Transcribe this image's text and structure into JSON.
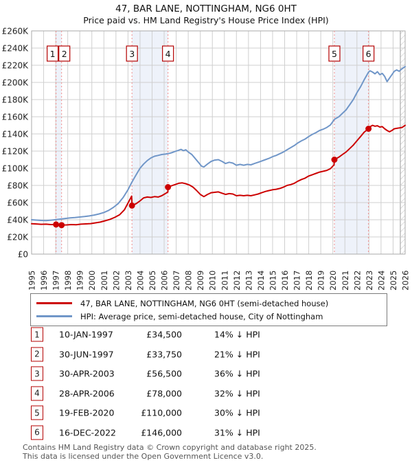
{
  "title": "47, BAR LANE, NOTTINGHAM, NG6 0HT",
  "subtitle": "Price paid vs. HM Land Registry's House Price Index (HPI)",
  "chart_data": {
    "type": "line",
    "x_range": [
      1995,
      2026
    ],
    "y_range": [
      0,
      260000
    ],
    "y_tick_step": 20000,
    "y_tick_labels": [
      "£0",
      "£20K",
      "£40K",
      "£60K",
      "£80K",
      "£100K",
      "£120K",
      "£140K",
      "£160K",
      "£180K",
      "£200K",
      "£220K",
      "£240K",
      "£260K"
    ],
    "x_ticks": [
      1995,
      1996,
      1997,
      1998,
      1999,
      2000,
      2001,
      2002,
      2003,
      2004,
      2005,
      2006,
      2007,
      2008,
      2009,
      2010,
      2011,
      2012,
      2013,
      2014,
      2015,
      2016,
      2017,
      2018,
      2019,
      2020,
      2021,
      2022,
      2023,
      2024,
      2025,
      2026
    ],
    "grid": true,
    "colors": {
      "price": "#cc0000",
      "hpi": "#7096c8",
      "sale_dash": "#f28b8b",
      "band": "#eef2fa",
      "gridline": "#cfcfcf",
      "frame": "#aaaaaa",
      "hatch": "#bbbbbb",
      "marker_box_border": "#b40000"
    },
    "series": [
      {
        "name": "47, BAR LANE, NOTTINGHAM, NG6 0HT (semi-detached house)",
        "color": "#cc0000",
        "points_year_gbpk": [
          [
            1995,
            35.4
          ],
          [
            1995.4,
            35.1
          ],
          [
            1995.8,
            34.7
          ],
          [
            1996.2,
            34.9
          ],
          [
            1996.6,
            34.4
          ],
          [
            1997.03,
            34.5
          ],
          [
            1997.3,
            33.9
          ],
          [
            1997.49,
            33.75
          ],
          [
            1997.9,
            34
          ],
          [
            1998.3,
            34.4
          ],
          [
            1998.7,
            34.2
          ],
          [
            1999.1,
            34.9
          ],
          [
            1999.5,
            35.2
          ],
          [
            1999.9,
            35.5
          ],
          [
            2000.3,
            36.4
          ],
          [
            2000.7,
            37.3
          ],
          [
            2001.1,
            38.8
          ],
          [
            2001.5,
            40.5
          ],
          [
            2001.9,
            42.8
          ],
          [
            2002.3,
            45.8
          ],
          [
            2002.7,
            51.5
          ],
          [
            2003.1,
            62
          ],
          [
            2003.3,
            67.5
          ],
          [
            2003.34,
            56.5
          ],
          [
            2003.7,
            59
          ],
          [
            2004,
            62
          ],
          [
            2004.3,
            65.5
          ],
          [
            2004.6,
            66.5
          ],
          [
            2004.9,
            66
          ],
          [
            2005.2,
            67
          ],
          [
            2005.5,
            66.5
          ],
          [
            2005.8,
            68
          ],
          [
            2006.1,
            70.5
          ],
          [
            2006.31,
            72.5
          ],
          [
            2006.32,
            78
          ],
          [
            2006.6,
            79.5
          ],
          [
            2006.9,
            81
          ],
          [
            2007.2,
            82.5
          ],
          [
            2007.5,
            83
          ],
          [
            2007.8,
            82
          ],
          [
            2008.1,
            80.5
          ],
          [
            2008.4,
            78
          ],
          [
            2008.7,
            74
          ],
          [
            2009,
            69.5
          ],
          [
            2009.3,
            67
          ],
          [
            2009.6,
            69.5
          ],
          [
            2009.9,
            71.5
          ],
          [
            2010.2,
            72
          ],
          [
            2010.5,
            72.5
          ],
          [
            2010.8,
            71
          ],
          [
            2011.1,
            69.5
          ],
          [
            2011.4,
            70.5
          ],
          [
            2011.7,
            70
          ],
          [
            2012,
            68
          ],
          [
            2012.3,
            68.5
          ],
          [
            2012.6,
            68
          ],
          [
            2012.9,
            68.5
          ],
          [
            2013.2,
            68
          ],
          [
            2013.5,
            69
          ],
          [
            2013.8,
            70
          ],
          [
            2014.1,
            71.5
          ],
          [
            2014.4,
            73
          ],
          [
            2014.7,
            74
          ],
          [
            2015,
            75
          ],
          [
            2015.3,
            75.5
          ],
          [
            2015.6,
            76.5
          ],
          [
            2015.9,
            78
          ],
          [
            2016.2,
            80
          ],
          [
            2016.5,
            81
          ],
          [
            2016.8,
            82.5
          ],
          [
            2017.1,
            85
          ],
          [
            2017.4,
            87
          ],
          [
            2017.7,
            88.5
          ],
          [
            2018,
            91
          ],
          [
            2018.3,
            92.5
          ],
          [
            2018.6,
            94
          ],
          [
            2018.9,
            95.5
          ],
          [
            2019.2,
            96.5
          ],
          [
            2019.5,
            97.5
          ],
          [
            2019.8,
            99.5
          ],
          [
            2020.1,
            104
          ],
          [
            2020.13,
            110
          ],
          [
            2020.5,
            113
          ],
          [
            2020.8,
            116
          ],
          [
            2021.1,
            119
          ],
          [
            2021.4,
            123
          ],
          [
            2021.7,
            127
          ],
          [
            2022,
            132
          ],
          [
            2022.3,
            137
          ],
          [
            2022.6,
            142
          ],
          [
            2022.96,
            146
          ],
          [
            2023.1,
            148.5
          ],
          [
            2023.3,
            150
          ],
          [
            2023.5,
            149
          ],
          [
            2023.7,
            149.5
          ],
          [
            2023.9,
            148
          ],
          [
            2024.1,
            148.5
          ],
          [
            2024.3,
            146
          ],
          [
            2024.5,
            144
          ],
          [
            2024.7,
            142.5
          ],
          [
            2024.9,
            144
          ],
          [
            2025.1,
            146
          ],
          [
            2025.3,
            146.5
          ],
          [
            2025.5,
            147
          ],
          [
            2025.75,
            147.5
          ],
          [
            2026,
            150
          ]
        ]
      },
      {
        "name": "HPI: Average price, semi-detached house, City of Nottingham",
        "color": "#7096c8",
        "points_year_gbpk": [
          [
            1995,
            40
          ],
          [
            1995.4,
            39.6
          ],
          [
            1995.8,
            39.2
          ],
          [
            1996.2,
            39
          ],
          [
            1996.6,
            39.5
          ],
          [
            1997,
            40.1
          ],
          [
            1997.4,
            40.8
          ],
          [
            1997.8,
            41.5
          ],
          [
            1998.2,
            42.2
          ],
          [
            1998.6,
            42.6
          ],
          [
            1999,
            43.2
          ],
          [
            1999.4,
            43.8
          ],
          [
            1999.8,
            44.5
          ],
          [
            2000.2,
            45.5
          ],
          [
            2000.6,
            46.8
          ],
          [
            2001,
            48.5
          ],
          [
            2001.4,
            51
          ],
          [
            2001.8,
            54.5
          ],
          [
            2002.2,
            59
          ],
          [
            2002.6,
            66
          ],
          [
            2003,
            75
          ],
          [
            2003.33,
            84
          ],
          [
            2003.7,
            93
          ],
          [
            2004,
            100
          ],
          [
            2004.3,
            105
          ],
          [
            2004.6,
            109
          ],
          [
            2004.9,
            112
          ],
          [
            2005.2,
            114
          ],
          [
            2005.5,
            115
          ],
          [
            2005.8,
            116
          ],
          [
            2006.1,
            116.5
          ],
          [
            2006.32,
            117
          ],
          [
            2006.6,
            118
          ],
          [
            2006.9,
            119.5
          ],
          [
            2007.2,
            121
          ],
          [
            2007.4,
            122
          ],
          [
            2007.6,
            120.5
          ],
          [
            2007.8,
            121.5
          ],
          [
            2008,
            119
          ],
          [
            2008.3,
            116
          ],
          [
            2008.6,
            111
          ],
          [
            2008.9,
            106
          ],
          [
            2009.1,
            102.5
          ],
          [
            2009.3,
            101.5
          ],
          [
            2009.6,
            105
          ],
          [
            2009.9,
            108
          ],
          [
            2010.2,
            109.5
          ],
          [
            2010.5,
            110
          ],
          [
            2010.8,
            108
          ],
          [
            2011.1,
            105.5
          ],
          [
            2011.4,
            107
          ],
          [
            2011.7,
            106
          ],
          [
            2012,
            103.5
          ],
          [
            2012.3,
            104.5
          ],
          [
            2012.6,
            103.5
          ],
          [
            2012.9,
            104.5
          ],
          [
            2013.2,
            104
          ],
          [
            2013.5,
            105.5
          ],
          [
            2013.8,
            107
          ],
          [
            2014.1,
            108.5
          ],
          [
            2014.4,
            110
          ],
          [
            2014.7,
            111.5
          ],
          [
            2015,
            113.5
          ],
          [
            2015.3,
            115
          ],
          [
            2015.6,
            117
          ],
          [
            2015.9,
            119
          ],
          [
            2016.2,
            121.5
          ],
          [
            2016.5,
            124
          ],
          [
            2016.8,
            126.5
          ],
          [
            2017.1,
            129.5
          ],
          [
            2017.4,
            132
          ],
          [
            2017.7,
            134
          ],
          [
            2018,
            137
          ],
          [
            2018.3,
            139.5
          ],
          [
            2018.6,
            141.5
          ],
          [
            2018.9,
            144
          ],
          [
            2019.2,
            145.5
          ],
          [
            2019.5,
            147.5
          ],
          [
            2019.8,
            150.5
          ],
          [
            2020.13,
            157
          ],
          [
            2020.5,
            160
          ],
          [
            2020.8,
            164
          ],
          [
            2021.1,
            168
          ],
          [
            2021.4,
            174
          ],
          [
            2021.7,
            180
          ],
          [
            2022,
            188
          ],
          [
            2022.3,
            195
          ],
          [
            2022.6,
            203
          ],
          [
            2022.96,
            212
          ],
          [
            2023.1,
            213.5
          ],
          [
            2023.3,
            212
          ],
          [
            2023.5,
            210
          ],
          [
            2023.7,
            212.5
          ],
          [
            2023.9,
            209
          ],
          [
            2024.1,
            210.5
          ],
          [
            2024.3,
            207
          ],
          [
            2024.5,
            201
          ],
          [
            2024.7,
            205
          ],
          [
            2024.9,
            209
          ],
          [
            2025.1,
            213
          ],
          [
            2025.3,
            214.5
          ],
          [
            2025.5,
            213
          ],
          [
            2025.75,
            216
          ],
          [
            2026,
            218.5
          ]
        ]
      }
    ],
    "sales": [
      {
        "label": "1",
        "year": 1997.03,
        "price_k": 34.5,
        "box_dx": -5
      },
      {
        "label": "2",
        "year": 1997.49,
        "price_k": 33.75,
        "box_dx": 4
      },
      {
        "label": "3",
        "year": 2003.33,
        "price_k": 56.5,
        "box_dx": 0
      },
      {
        "label": "4",
        "year": 2006.32,
        "price_k": 78,
        "box_dx": 0
      },
      {
        "label": "5",
        "year": 2020.13,
        "price_k": 110,
        "box_dx": 0
      },
      {
        "label": "6",
        "year": 2022.96,
        "price_k": 146,
        "box_dx": 0
      }
    ],
    "bands": [
      [
        1997.03,
        1997.49
      ],
      [
        2003.33,
        2006.32
      ],
      [
        2020.13,
        2022.96
      ]
    ],
    "hatch_from": 2025.6,
    "legend_position": "bottom"
  },
  "legend": {
    "items": [
      {
        "label": "47, BAR LANE, NOTTINGHAM, NG6 0HT (semi-detached house)",
        "color": "#cc0000"
      },
      {
        "label": "HPI: Average price, semi-detached house, City of Nottingham",
        "color": "#7096c8"
      }
    ]
  },
  "table": {
    "rows": [
      {
        "num": "1",
        "date": "10-JAN-1997",
        "price": "£34,500",
        "hpi": "14% ↓ HPI"
      },
      {
        "num": "2",
        "date": "30-JUN-1997",
        "price": "£33,750",
        "hpi": "21% ↓ HPI"
      },
      {
        "num": "3",
        "date": "30-APR-2003",
        "price": "£56,500",
        "hpi": "36% ↓ HPI"
      },
      {
        "num": "4",
        "date": "28-APR-2006",
        "price": "£78,000",
        "hpi": "32% ↓ HPI"
      },
      {
        "num": "5",
        "date": "19-FEB-2020",
        "price": "£110,000",
        "hpi": "30% ↓ HPI"
      },
      {
        "num": "6",
        "date": "16-DEC-2022",
        "price": "£146,000",
        "hpi": "31% ↓ HPI"
      }
    ]
  },
  "footer": {
    "line1": "Contains HM Land Registry data © Crown copyright and database right 2025.",
    "line2": "This data is licensed under the Open Government Licence v3.0."
  }
}
